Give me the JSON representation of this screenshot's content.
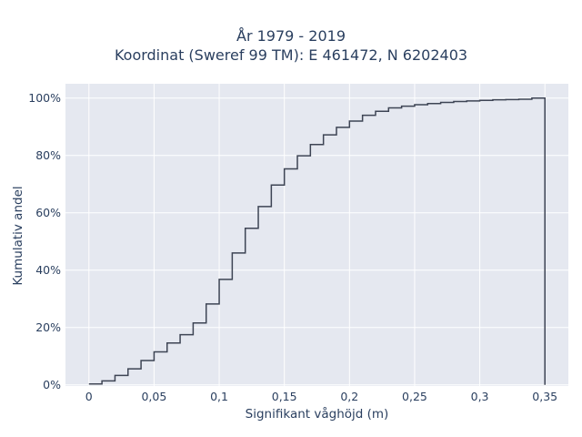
{
  "chart_data": {
    "type": "line",
    "shape": "step",
    "title": "År 1979 - 2019",
    "subtitle": "Koordinat (Sweref 99 TM): E 461472, N 6202403",
    "xlabel": "Signifikant våghöjd (m)",
    "ylabel": "Kumulativ andel",
    "xlim": [
      -0.018,
      0.368
    ],
    "ylim": [
      -0.004,
      1.05
    ],
    "x_ticks": [
      0,
      0.05,
      0.1,
      0.15,
      0.2,
      0.25,
      0.3,
      0.35
    ],
    "x_tick_labels": [
      "0",
      "0,05",
      "0,1",
      "0,15",
      "0,2",
      "0,25",
      "0,3",
      "0,35"
    ],
    "y_ticks": [
      0,
      0.2,
      0.4,
      0.6,
      0.8,
      1.0
    ],
    "y_tick_labels": [
      "0%",
      "20%",
      "40%",
      "60%",
      "80%",
      "100%"
    ],
    "grid": true,
    "series": [
      {
        "x": [
          0,
          0.01,
          0.02,
          0.03,
          0.04,
          0.05,
          0.06,
          0.07,
          0.08,
          0.09,
          0.1,
          0.11,
          0.12,
          0.13,
          0.14,
          0.15,
          0.16,
          0.17,
          0.18,
          0.19,
          0.2,
          0.21,
          0.22,
          0.23,
          0.24,
          0.25,
          0.26,
          0.27,
          0.28,
          0.29,
          0.3,
          0.31,
          0.32,
          0.33,
          0.34,
          0.35
        ],
        "y": [
          0.003,
          0.014,
          0.033,
          0.056,
          0.085,
          0.115,
          0.146,
          0.175,
          0.216,
          0.282,
          0.368,
          0.46,
          0.546,
          0.622,
          0.697,
          0.753,
          0.799,
          0.838,
          0.872,
          0.898,
          0.92,
          0.94,
          0.954,
          0.966,
          0.972,
          0.977,
          0.981,
          0.985,
          0.988,
          0.99,
          0.992,
          0.994,
          0.995,
          0.996,
          1.0,
          0.0
        ],
        "color": "#3d4454"
      }
    ],
    "colors": {
      "plot_background": "#e5e8f0",
      "grid": "#ffffff",
      "text": "#2a3f5f"
    }
  }
}
